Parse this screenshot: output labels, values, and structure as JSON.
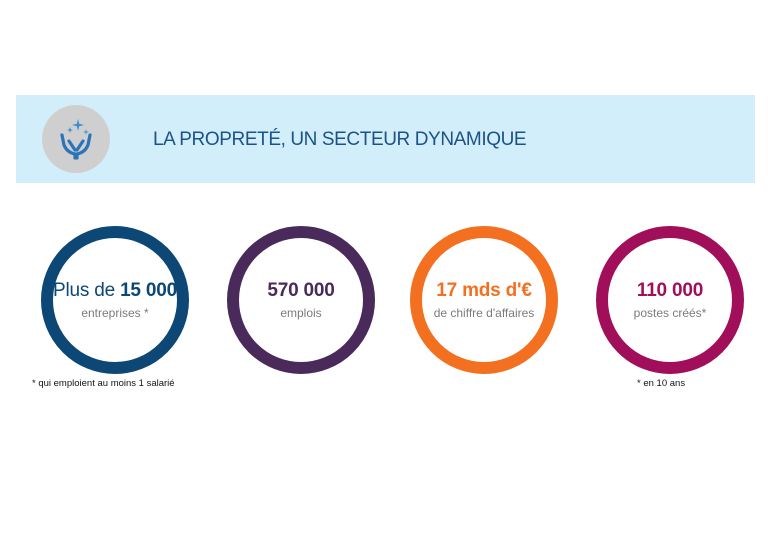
{
  "banner": {
    "icon": "hands-sparkle-icon",
    "title": "LA PROPRETÉ, UN SECTEUR DYNAMIQUE",
    "background": "#d3eefb",
    "title_color": "#1c5387"
  },
  "stats": [
    {
      "prefix": "Plus de ",
      "value": "15 000",
      "label": "entreprises *",
      "color": "#0d4776"
    },
    {
      "value": "570 000",
      "label": "emplois",
      "color": "#4a2a5a"
    },
    {
      "value": "17 mds d'€",
      "label": "de chiffre d'affaires",
      "color": "#f37021"
    },
    {
      "value": "110 000",
      "label": "postes créés*",
      "color": "#a10f5a"
    }
  ],
  "footnotes": {
    "first": "* qui emploient au moins 1 salarié",
    "last": "* en 10 ans"
  }
}
